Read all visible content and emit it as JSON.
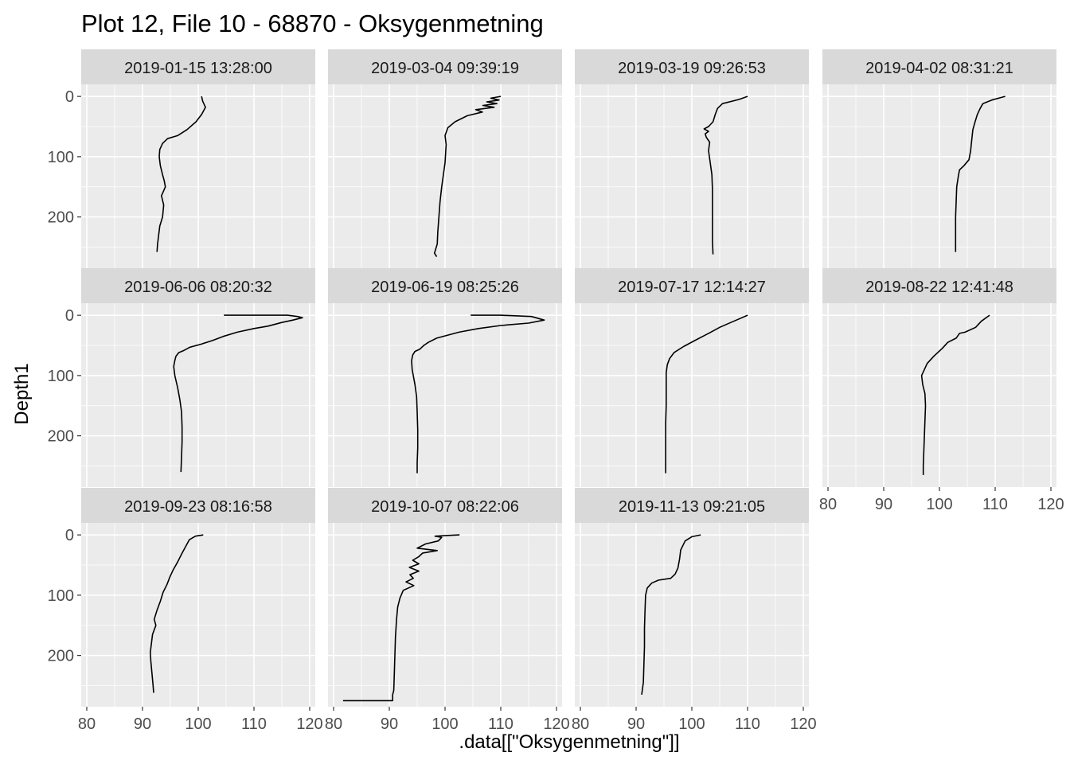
{
  "figure": {
    "title": "Plot 12, File 10 - 68870  -  Oksygenmetning",
    "xlabel": ".data[[\"Oksygenmetning\"]]",
    "ylabel": "Depth1"
  },
  "chart_data": {
    "type": "line",
    "layout": "facet_wrap 3 rows x 4 columns",
    "xlim": [
      79,
      121
    ],
    "ylim": [
      285,
      -20
    ],
    "y_reversed": true,
    "x_ticks": [
      80,
      90,
      100,
      110,
      120
    ],
    "y_ticks": [
      0,
      100,
      200
    ],
    "grid": true,
    "line_color": "#000000",
    "panel_color": "#ebebeb",
    "strip_color": "#d9d9d9",
    "panels": [
      {
        "label": "2019-01-15 13:28:00",
        "points": [
          [
            100.6,
            0
          ],
          [
            100.8,
            8
          ],
          [
            101.3,
            18
          ],
          [
            100.6,
            30
          ],
          [
            99.6,
            42
          ],
          [
            98.0,
            55
          ],
          [
            96.3,
            65
          ],
          [
            94.5,
            70
          ],
          [
            93.6,
            78
          ],
          [
            93.1,
            88
          ],
          [
            93.0,
            100
          ],
          [
            93.2,
            115
          ],
          [
            93.6,
            130
          ],
          [
            93.9,
            140
          ],
          [
            94.1,
            150
          ],
          [
            93.4,
            165
          ],
          [
            93.8,
            180
          ],
          [
            93.6,
            200
          ],
          [
            93.1,
            215
          ],
          [
            92.9,
            230
          ],
          [
            92.7,
            245
          ],
          [
            92.6,
            258
          ]
        ]
      },
      {
        "label": "2019-03-04 09:39:19",
        "points": [
          [
            110.0,
            0
          ],
          [
            108.2,
            3
          ],
          [
            109.7,
            6
          ],
          [
            107.5,
            9
          ],
          [
            109.3,
            12
          ],
          [
            106.8,
            15
          ],
          [
            108.8,
            18
          ],
          [
            105.5,
            22
          ],
          [
            106.7,
            26
          ],
          [
            104.0,
            32
          ],
          [
            101.8,
            42
          ],
          [
            100.5,
            52
          ],
          [
            100.0,
            65
          ],
          [
            100.2,
            80
          ],
          [
            100.1,
            95
          ],
          [
            100.0,
            110
          ],
          [
            99.7,
            130
          ],
          [
            99.4,
            150
          ],
          [
            99.1,
            175
          ],
          [
            98.9,
            200
          ],
          [
            98.7,
            225
          ],
          [
            98.6,
            245
          ],
          [
            98.1,
            260
          ],
          [
            98.5,
            266
          ]
        ]
      },
      {
        "label": "2019-03-19 09:26:53",
        "points": [
          [
            110.0,
            0
          ],
          [
            108.5,
            5
          ],
          [
            105.5,
            12
          ],
          [
            104.6,
            20
          ],
          [
            104.2,
            30
          ],
          [
            103.8,
            42
          ],
          [
            103.0,
            50
          ],
          [
            102.2,
            54
          ],
          [
            103.0,
            58
          ],
          [
            102.4,
            62
          ],
          [
            102.6,
            68
          ],
          [
            103.2,
            76
          ],
          [
            103.0,
            90
          ],
          [
            103.3,
            110
          ],
          [
            103.6,
            130
          ],
          [
            103.7,
            155
          ],
          [
            103.7,
            185
          ],
          [
            103.7,
            215
          ],
          [
            103.7,
            240
          ],
          [
            103.8,
            262
          ]
        ]
      },
      {
        "label": "2019-04-02 08:31:21",
        "points": [
          [
            111.8,
            0
          ],
          [
            109.4,
            6
          ],
          [
            107.8,
            12
          ],
          [
            107.3,
            20
          ],
          [
            106.8,
            30
          ],
          [
            106.4,
            42
          ],
          [
            106.0,
            55
          ],
          [
            105.8,
            72
          ],
          [
            105.6,
            90
          ],
          [
            105.3,
            105
          ],
          [
            104.4,
            115
          ],
          [
            103.6,
            122
          ],
          [
            103.4,
            132
          ],
          [
            103.1,
            150
          ],
          [
            103.0,
            175
          ],
          [
            102.9,
            200
          ],
          [
            102.9,
            230
          ],
          [
            102.9,
            258
          ]
        ]
      },
      {
        "label": "2019-06-06 08:20:32",
        "points": [
          [
            104.6,
            0
          ],
          [
            116.0,
            0
          ],
          [
            117.8,
            2
          ],
          [
            118.7,
            4
          ],
          [
            117.0,
            8
          ],
          [
            115.0,
            12
          ],
          [
            112.5,
            18
          ],
          [
            110.0,
            22
          ],
          [
            107.0,
            28
          ],
          [
            104.5,
            35
          ],
          [
            102.5,
            42
          ],
          [
            100.5,
            48
          ],
          [
            98.5,
            53
          ],
          [
            97.5,
            58
          ],
          [
            96.5,
            62
          ],
          [
            96.0,
            68
          ],
          [
            95.8,
            75
          ],
          [
            95.6,
            85
          ],
          [
            95.8,
            100
          ],
          [
            96.3,
            120
          ],
          [
            96.7,
            140
          ],
          [
            97.0,
            160
          ],
          [
            97.1,
            185
          ],
          [
            97.1,
            210
          ],
          [
            97.0,
            235
          ],
          [
            96.9,
            260
          ]
        ]
      },
      {
        "label": "2019-06-19 08:25:26",
        "points": [
          [
            104.6,
            0
          ],
          [
            110.0,
            0
          ],
          [
            115.5,
            2
          ],
          [
            117.8,
            8
          ],
          [
            115.0,
            13
          ],
          [
            110.0,
            17
          ],
          [
            106.0,
            22
          ],
          [
            102.5,
            28
          ],
          [
            100.5,
            33
          ],
          [
            98.5,
            38
          ],
          [
            97.0,
            45
          ],
          [
            96.2,
            50
          ],
          [
            95.5,
            56
          ],
          [
            94.6,
            60
          ],
          [
            94.2,
            66
          ],
          [
            94.0,
            75
          ],
          [
            94.1,
            90
          ],
          [
            94.3,
            100
          ],
          [
            94.6,
            115
          ],
          [
            94.9,
            135
          ],
          [
            95.0,
            160
          ],
          [
            95.1,
            190
          ],
          [
            95.1,
            220
          ],
          [
            95.0,
            245
          ],
          [
            95.0,
            262
          ]
        ]
      },
      {
        "label": "2019-07-17 12:14:27",
        "points": [
          [
            110.0,
            0
          ],
          [
            108.5,
            6
          ],
          [
            107.0,
            12
          ],
          [
            105.0,
            20
          ],
          [
            103.0,
            30
          ],
          [
            100.5,
            42
          ],
          [
            98.5,
            52
          ],
          [
            96.8,
            62
          ],
          [
            96.0,
            72
          ],
          [
            95.6,
            82
          ],
          [
            95.4,
            95
          ],
          [
            95.4,
            120
          ],
          [
            95.4,
            150
          ],
          [
            95.3,
            180
          ],
          [
            95.3,
            210
          ],
          [
            95.3,
            240
          ],
          [
            95.3,
            262
          ]
        ]
      },
      {
        "label": "2019-08-22 12:41:48",
        "points": [
          [
            109.0,
            0
          ],
          [
            107.5,
            10
          ],
          [
            106.5,
            20
          ],
          [
            104.6,
            28
          ],
          [
            103.6,
            30
          ],
          [
            103.0,
            38
          ],
          [
            101.5,
            45
          ],
          [
            100.5,
            55
          ],
          [
            99.0,
            68
          ],
          [
            97.8,
            80
          ],
          [
            97.3,
            90
          ],
          [
            96.8,
            100
          ],
          [
            97.0,
            115
          ],
          [
            97.4,
            130
          ],
          [
            97.5,
            150
          ],
          [
            97.4,
            175
          ],
          [
            97.3,
            200
          ],
          [
            97.2,
            225
          ],
          [
            97.1,
            250
          ],
          [
            97.1,
            265
          ]
        ]
      },
      {
        "label": "2019-09-23 08:16:58",
        "points": [
          [
            100.9,
            0
          ],
          [
            99.5,
            2
          ],
          [
            98.4,
            8
          ],
          [
            97.7,
            20
          ],
          [
            97.0,
            32
          ],
          [
            96.3,
            45
          ],
          [
            95.5,
            58
          ],
          [
            94.9,
            70
          ],
          [
            94.4,
            82
          ],
          [
            93.7,
            95
          ],
          [
            93.2,
            110
          ],
          [
            92.6,
            125
          ],
          [
            92.1,
            140
          ],
          [
            92.4,
            150
          ],
          [
            91.8,
            165
          ],
          [
            91.6,
            180
          ],
          [
            91.4,
            195
          ],
          [
            91.5,
            210
          ],
          [
            91.7,
            230
          ],
          [
            91.9,
            250
          ],
          [
            92.0,
            262
          ]
        ]
      },
      {
        "label": "2019-10-07 08:22:06",
        "points": [
          [
            102.6,
            0
          ],
          [
            98.2,
            2
          ],
          [
            99.4,
            4
          ],
          [
            98.8,
            10
          ],
          [
            96.5,
            15
          ],
          [
            95.0,
            22
          ],
          [
            98.6,
            26
          ],
          [
            96.0,
            30
          ],
          [
            95.3,
            36
          ],
          [
            94.2,
            42
          ],
          [
            95.3,
            48
          ],
          [
            93.6,
            54
          ],
          [
            95.3,
            60
          ],
          [
            93.7,
            66
          ],
          [
            94.3,
            72
          ],
          [
            93.0,
            78
          ],
          [
            94.4,
            84
          ],
          [
            92.5,
            92
          ],
          [
            91.9,
            105
          ],
          [
            91.5,
            120
          ],
          [
            91.3,
            140
          ],
          [
            91.1,
            170
          ],
          [
            91.0,
            200
          ],
          [
            90.9,
            230
          ],
          [
            90.8,
            258
          ],
          [
            90.6,
            265
          ],
          [
            90.6,
            275
          ],
          [
            81.7,
            275
          ]
        ]
      },
      {
        "label": "2019-11-13 09:21:05",
        "points": [
          [
            101.6,
            0
          ],
          [
            100.0,
            3
          ],
          [
            98.8,
            10
          ],
          [
            98.0,
            25
          ],
          [
            97.8,
            40
          ],
          [
            97.5,
            55
          ],
          [
            97.0,
            65
          ],
          [
            96.2,
            72
          ],
          [
            94.0,
            75
          ],
          [
            92.8,
            80
          ],
          [
            92.0,
            88
          ],
          [
            91.7,
            100
          ],
          [
            91.6,
            125
          ],
          [
            91.5,
            155
          ],
          [
            91.5,
            185
          ],
          [
            91.4,
            215
          ],
          [
            91.3,
            245
          ],
          [
            91.0,
            265
          ]
        ]
      }
    ]
  }
}
